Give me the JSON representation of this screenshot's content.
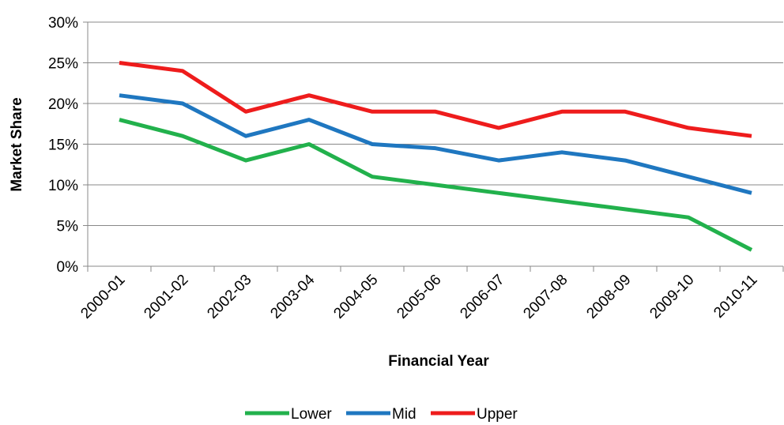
{
  "chart_data": {
    "type": "line",
    "y_label": "Market Share",
    "x_label": "Financial Year",
    "categories": [
      "2000-01",
      "2001-02",
      "2002-03",
      "2003-04",
      "2004-05",
      "2005-06",
      "2006-07",
      "2007-08",
      "2008-09",
      "2009-10",
      "2010-11"
    ],
    "series": [
      {
        "name": "Lower",
        "color": "#22b14c",
        "values": [
          18,
          16,
          13,
          15,
          11,
          10,
          9,
          8,
          7,
          6,
          2
        ]
      },
      {
        "name": "Mid",
        "color": "#1f77c0",
        "values": [
          21,
          20,
          16,
          18,
          15,
          14.5,
          13,
          14,
          13,
          11,
          9
        ]
      },
      {
        "name": "Upper",
        "color": "#ee1c1c",
        "values": [
          25,
          24,
          19,
          21,
          19,
          19,
          17,
          19,
          19,
          17,
          16
        ]
      }
    ],
    "ylim": [
      0,
      30
    ],
    "yticks": [
      {
        "value": 0,
        "label": "0%"
      },
      {
        "value": 5,
        "label": "5%"
      },
      {
        "value": 10,
        "label": "10%"
      },
      {
        "value": 15,
        "label": "15%"
      },
      {
        "value": 20,
        "label": "20%"
      },
      {
        "value": 25,
        "label": "25%"
      },
      {
        "value": 30,
        "label": "30%"
      }
    ],
    "grid": true,
    "legend": "bottom"
  }
}
